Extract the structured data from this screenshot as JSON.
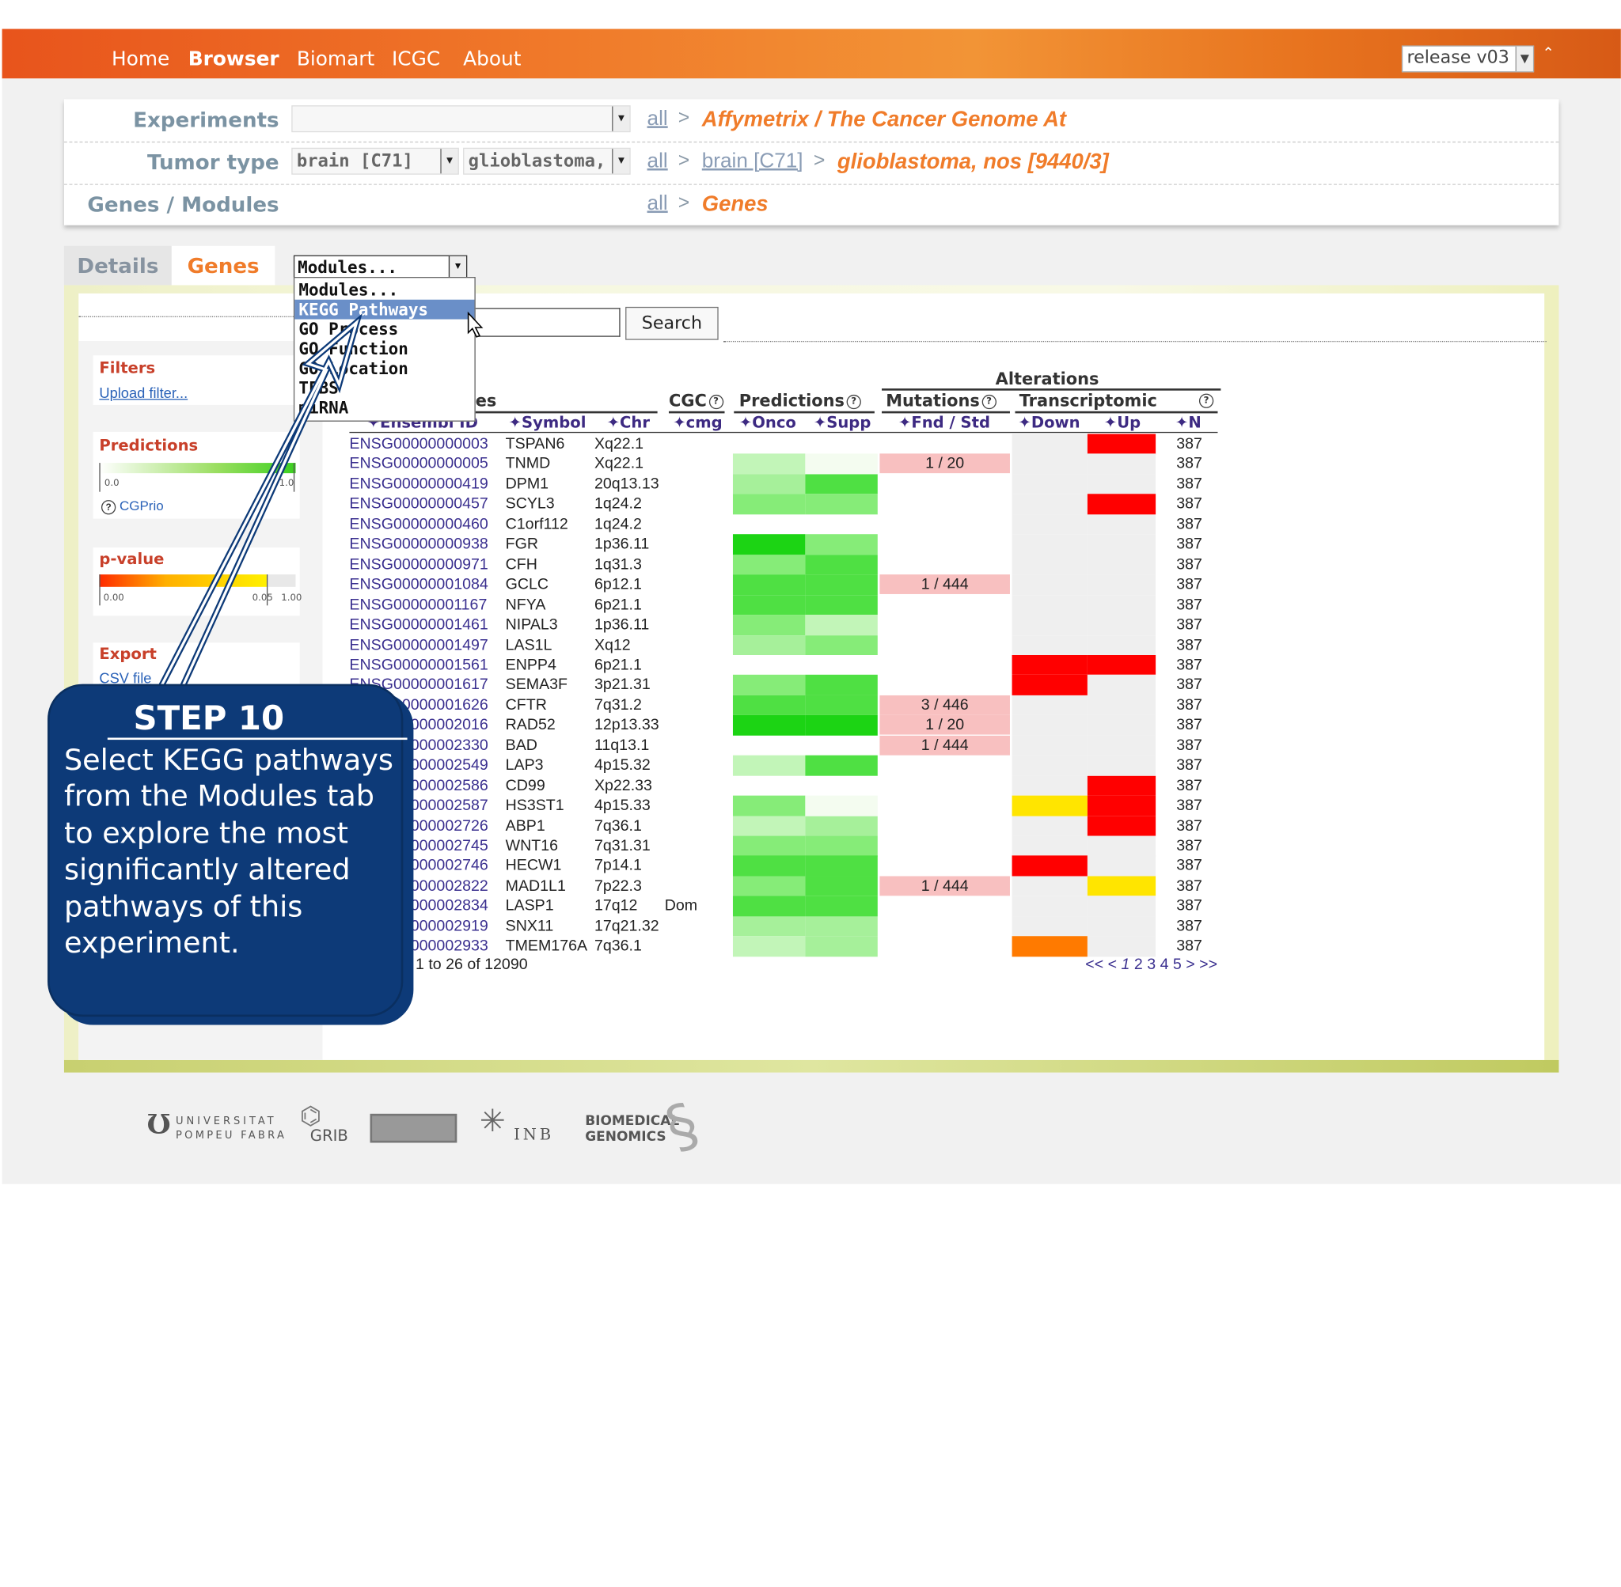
{
  "nav": {
    "items": [
      "Home",
      "Browser",
      "Biomart",
      "ICGC",
      "About"
    ],
    "active": "Browser",
    "release_label": "release v03"
  },
  "criteria": {
    "experiments": {
      "label": "Experiments",
      "select_value": "",
      "all_link": "all",
      "current": "Affymetrix / The Cancer Genome At"
    },
    "tumor_type": {
      "label": "Tumor type",
      "select1_value": "brain [C71]",
      "select2_value": "glioblastoma,",
      "all_link": "all",
      "brain_link": "brain [C71]",
      "current": "glioblastoma, nos [9440/3]"
    },
    "genes_modules": {
      "label": "Genes / Modules",
      "all_link": "all",
      "current": "Genes"
    }
  },
  "tabs": {
    "details": "Details",
    "genes": "Genes"
  },
  "modules_select": {
    "value": "Modules...",
    "options": [
      "Modules...",
      "KEGG Pathways",
      "GO Process",
      "GO Function",
      "GO Location",
      "TFBS",
      "miRNA"
    ],
    "highlighted": "KEGG Pathways"
  },
  "search": {
    "button": "Search",
    "placeholder": ""
  },
  "sidebar": {
    "filters_title": "Filters",
    "upload_filter": "Upload filter...",
    "predictions_title": "Predictions",
    "predictions_min": "0.0",
    "predictions_max": "1.0",
    "cgprio_label": "CGPrio",
    "pvalue_title": "p-value",
    "pvalue_min": "0.00",
    "pvalue_mid": "0.05",
    "pvalue_max": "1.00",
    "export_title": "Export",
    "csv_link": "CSV file"
  },
  "table": {
    "group_headers": {
      "alterations": "Alterations",
      "genes": "es",
      "cgc": "CGC",
      "predictions": "Predictions",
      "mutations": "Mutations",
      "transcriptomic": "Transcriptomic"
    },
    "columns": [
      "Ensembl ID",
      "Symbol",
      "Chr",
      "cmg",
      "Onco",
      "Supp",
      "Fnd / Std",
      "Down",
      "Up",
      "N"
    ],
    "rows": [
      {
        "id": "ENSG00000000003",
        "symbol": "TSPAN6",
        "chr": "Xq22.1",
        "cgc": "",
        "onco": "none",
        "supp": "none",
        "mut": "",
        "down": "grey",
        "up": "red",
        "n": "387"
      },
      {
        "id": "ENSG00000000005",
        "symbol": "TNMD",
        "chr": "Xq22.1",
        "cgc": "",
        "onco": "g1",
        "supp": "g0",
        "mut": "1 / 20",
        "down": "grey",
        "up": "grey",
        "n": "387"
      },
      {
        "id": "ENSG00000000419",
        "symbol": "DPM1",
        "chr": "20q13.13",
        "cgc": "",
        "onco": "g2",
        "supp": "g4",
        "mut": "",
        "down": "grey",
        "up": "grey",
        "n": "387"
      },
      {
        "id": "ENSG00000000457",
        "symbol": "SCYL3",
        "chr": "1q24.2",
        "cgc": "",
        "onco": "g3",
        "supp": "g3",
        "mut": "",
        "down": "grey",
        "up": "red",
        "n": "387"
      },
      {
        "id": "ENSG00000000460",
        "symbol": "C1orf112",
        "chr": "1q24.2",
        "cgc": "",
        "onco": "none",
        "supp": "none",
        "mut": "",
        "down": "grey",
        "up": "grey",
        "n": "387"
      },
      {
        "id": "ENSG00000000938",
        "symbol": "FGR",
        "chr": "1p36.11",
        "cgc": "",
        "onco": "g5",
        "supp": "g3",
        "mut": "",
        "down": "grey",
        "up": "grey",
        "n": "387"
      },
      {
        "id": "ENSG00000000971",
        "symbol": "CFH",
        "chr": "1q31.3",
        "cgc": "",
        "onco": "g3",
        "supp": "g4",
        "mut": "",
        "down": "grey",
        "up": "grey",
        "n": "387"
      },
      {
        "id": "ENSG00000001084",
        "symbol": "GCLC",
        "chr": "6p12.1",
        "cgc": "",
        "onco": "g4",
        "supp": "g4",
        "mut": "1 / 444",
        "down": "grey",
        "up": "grey",
        "n": "387"
      },
      {
        "id": "ENSG00000001167",
        "symbol": "NFYA",
        "chr": "6p21.1",
        "cgc": "",
        "onco": "g4",
        "supp": "g4",
        "mut": "",
        "down": "grey",
        "up": "grey",
        "n": "387"
      },
      {
        "id": "ENSG00000001461",
        "symbol": "NIPAL3",
        "chr": "1p36.11",
        "cgc": "",
        "onco": "g3",
        "supp": "g1",
        "mut": "",
        "down": "grey",
        "up": "grey",
        "n": "387"
      },
      {
        "id": "ENSG00000001497",
        "symbol": "LAS1L",
        "chr": "Xq12",
        "cgc": "",
        "onco": "g2",
        "supp": "g3",
        "mut": "",
        "down": "grey",
        "up": "grey",
        "n": "387"
      },
      {
        "id": "ENSG00000001561",
        "symbol": "ENPP4",
        "chr": "6p21.1",
        "cgc": "",
        "onco": "none",
        "supp": "none",
        "mut": "",
        "down": "red",
        "up": "red",
        "n": "387"
      },
      {
        "id": "ENSG00000001617",
        "symbol": "SEMA3F",
        "chr": "3p21.31",
        "cgc": "",
        "onco": "g3",
        "supp": "g4",
        "mut": "",
        "down": "red",
        "up": "grey",
        "n": "387"
      },
      {
        "id": "ENSG00000001626",
        "symbol": "CFTR",
        "chr": "7q31.2",
        "cgc": "",
        "onco": "g4",
        "supp": "g4",
        "mut": "3 / 446",
        "down": "grey",
        "up": "grey",
        "n": "387"
      },
      {
        "id": "ENSG00000002016",
        "symbol": "RAD52",
        "chr": "12p13.33",
        "cgc": "",
        "onco": "g5",
        "supp": "g5",
        "mut": "1 / 20",
        "down": "grey",
        "up": "grey",
        "n": "387"
      },
      {
        "id": "ENSG00000002330",
        "symbol": "BAD",
        "chr": "11q13.1",
        "cgc": "",
        "onco": "none",
        "supp": "none",
        "mut": "1 / 444",
        "down": "grey",
        "up": "grey",
        "n": "387"
      },
      {
        "id": "ENSG00000002549",
        "symbol": "LAP3",
        "chr": "4p15.32",
        "cgc": "",
        "onco": "g1",
        "supp": "g4",
        "mut": "",
        "down": "grey",
        "up": "grey",
        "n": "387"
      },
      {
        "id": "ENSG00000002586",
        "symbol": "CD99",
        "chr": "Xp22.33",
        "cgc": "",
        "onco": "none",
        "supp": "none",
        "mut": "",
        "down": "grey",
        "up": "red",
        "n": "387"
      },
      {
        "id": "ENSG00000002587",
        "symbol": "HS3ST1",
        "chr": "4p15.33",
        "cgc": "",
        "onco": "g3",
        "supp": "g0",
        "mut": "",
        "down": "yellow",
        "up": "red",
        "n": "387"
      },
      {
        "id": "ENSG00000002726",
        "symbol": "ABP1",
        "chr": "7q36.1",
        "cgc": "",
        "onco": "g1",
        "supp": "g2",
        "mut": "",
        "down": "grey",
        "up": "red",
        "n": "387"
      },
      {
        "id": "ENSG00000002745",
        "symbol": "WNT16",
        "chr": "7q31.31",
        "cgc": "",
        "onco": "g3",
        "supp": "g3",
        "mut": "",
        "down": "grey",
        "up": "grey",
        "n": "387"
      },
      {
        "id": "ENSG00000002746",
        "symbol": "HECW1",
        "chr": "7p14.1",
        "cgc": "",
        "onco": "g4",
        "supp": "g4",
        "mut": "",
        "down": "red",
        "up": "grey",
        "n": "387"
      },
      {
        "id": "ENSG00000002822",
        "symbol": "MAD1L1",
        "chr": "7p22.3",
        "cgc": "",
        "onco": "g3",
        "supp": "g4",
        "mut": "1 / 444",
        "down": "grey",
        "up": "yellow",
        "n": "387"
      },
      {
        "id": "ENSG00000002834",
        "symbol": "LASP1",
        "chr": "17q12",
        "cgc": "Dom",
        "onco": "g4",
        "supp": "g4",
        "mut": "",
        "down": "grey",
        "up": "grey",
        "n": "387"
      },
      {
        "id": "ENSG00000002919",
        "symbol": "SNX11",
        "chr": "17q21.32",
        "cgc": "",
        "onco": "g2",
        "supp": "g2",
        "mut": "",
        "down": "grey",
        "up": "grey",
        "n": "387"
      },
      {
        "id": "ENSG00000002933",
        "symbol": "TMEM176A",
        "chr": "7q36.1",
        "cgc": "",
        "onco": "g1",
        "supp": "g2",
        "mut": "",
        "down": "orange",
        "up": "grey",
        "n": "387"
      }
    ],
    "pager_info": "1 to 26 of 12090",
    "pager": [
      "<<",
      "<",
      "1",
      "2",
      "3",
      "4",
      "5",
      ">",
      ">>"
    ]
  },
  "callout": {
    "title": "STEP 10",
    "text": "Select KEGG pathways from the Modules tab to explore the most significantly altered pathways of this experiment."
  },
  "footer": {
    "upf_line1": "UNIVERSITAT",
    "upf_line2": "POMPEU FABRA",
    "grib": "GRIB",
    "inb": "INB",
    "bg_line1": "BIOMEDICAL",
    "bg_line2": "GENOMICS"
  },
  "colors": {
    "accent_orange": "#f07c2a",
    "nav_orange": "#e8641e",
    "callout_blue": "#0d3a78",
    "alt_red": "#ff0000",
    "alt_yellow": "#ffe500",
    "alt_orange": "#ff7a00",
    "mut_pink": "#f8c0c0"
  }
}
